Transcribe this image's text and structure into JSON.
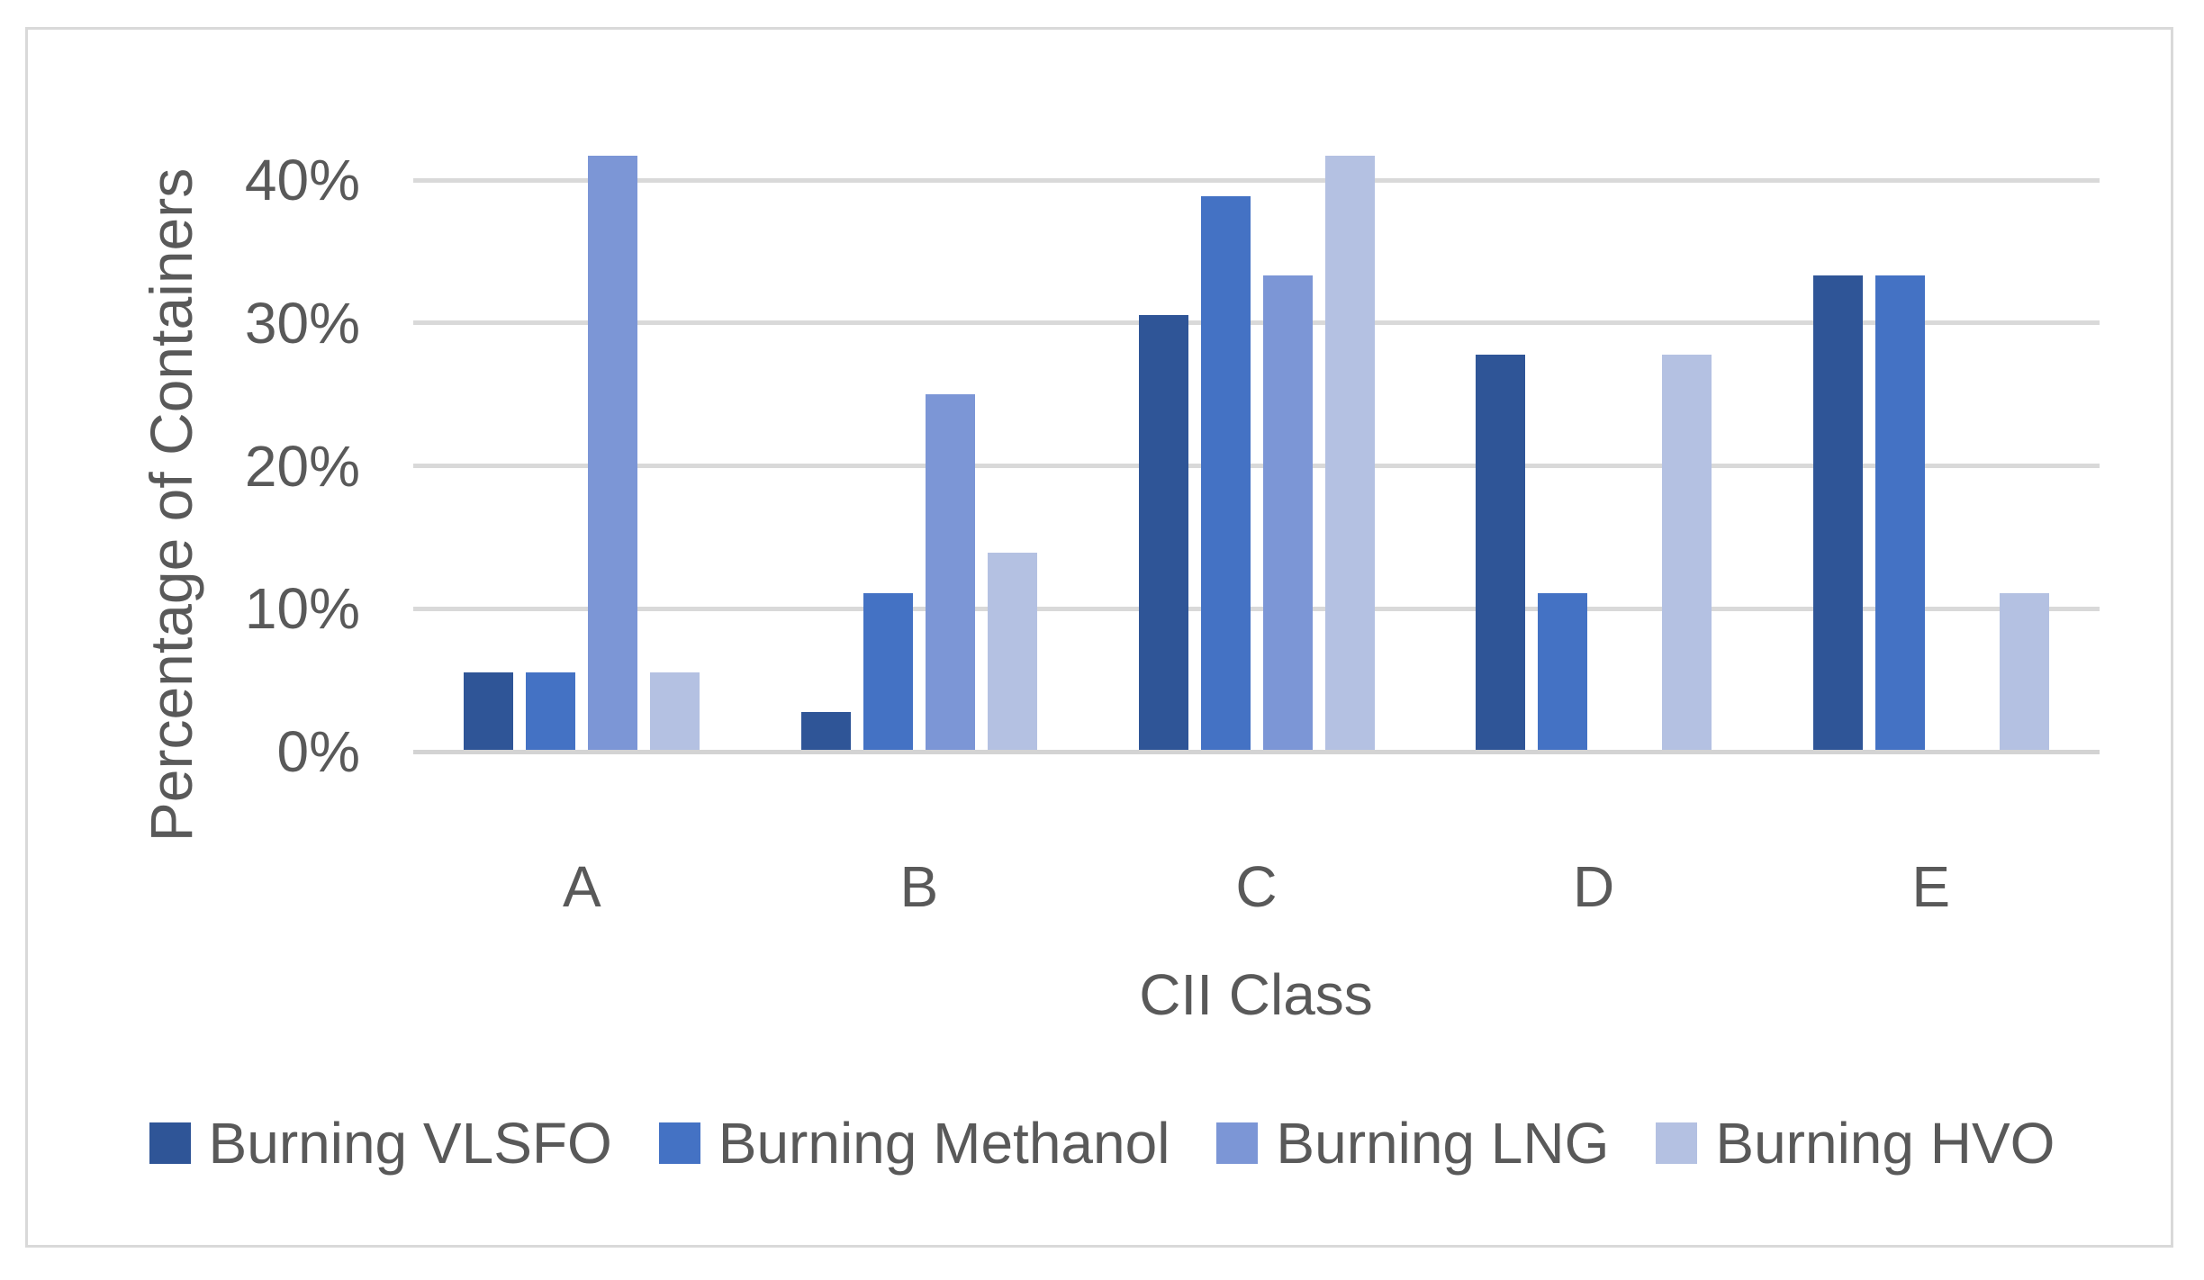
{
  "figure": {
    "background_color": "#FFFFFF",
    "border_color": "#D9D9D9",
    "text_color": "#595959",
    "gridline_color": "#D9D9D9",
    "axis_line_color": "#D3D3D3"
  },
  "chart_data": {
    "type": "bar",
    "title": "",
    "xlabel": "CII Class",
    "ylabel": "Percentage of Containers",
    "categories": [
      "A",
      "B",
      "C",
      "D",
      "E"
    ],
    "series": [
      {
        "name": "Burning VLSFO",
        "color": "#2F5597",
        "values": [
          5.56,
          2.78,
          30.56,
          27.78,
          33.33
        ]
      },
      {
        "name": "Burning Methanol",
        "color": "#4472C4",
        "values": [
          5.56,
          11.11,
          38.89,
          11.11,
          33.33
        ]
      },
      {
        "name": "Burning LNG",
        "color": "#7C96D6",
        "values": [
          41.67,
          25.0,
          33.33,
          0,
          0
        ]
      },
      {
        "name": "Burning HVO",
        "color": "#B4C1E2",
        "values": [
          5.56,
          13.89,
          41.67,
          27.78,
          11.11
        ]
      }
    ],
    "ylim": [
      0,
      40
    ],
    "ytick_step": 10,
    "ytick_labels": [
      "0%",
      "10%",
      "20%",
      "30%",
      "40%"
    ],
    "grid": true,
    "legend_position": "bottom"
  }
}
